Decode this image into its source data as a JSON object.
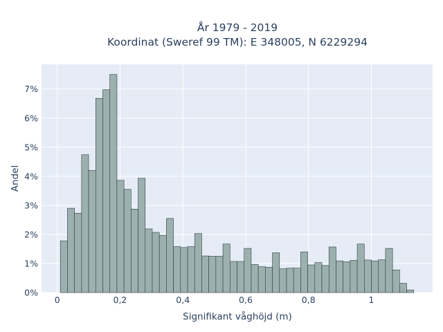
{
  "chart_data": {
    "type": "bar",
    "title_line1": "År 1979 - 2019",
    "title_line2": "Koordinat (Sweref 99 TM): E 348005, N 6229294",
    "xlabel": "Signifikant våghöjd (m)",
    "ylabel": "Andel",
    "x_ticks": [
      {
        "value": 0,
        "label": "0"
      },
      {
        "value": 0.2,
        "label": "0,2"
      },
      {
        "value": 0.4,
        "label": "0,4"
      },
      {
        "value": 0.6,
        "label": "0,6"
      },
      {
        "value": 0.8,
        "label": "0,8"
      },
      {
        "value": 1,
        "label": "1"
      }
    ],
    "y_ticks": [
      {
        "value": 0,
        "label": "0%"
      },
      {
        "value": 1,
        "label": "1%"
      },
      {
        "value": 2,
        "label": "2%"
      },
      {
        "value": 3,
        "label": "3%"
      },
      {
        "value": 4,
        "label": "4%"
      },
      {
        "value": 5,
        "label": "5%"
      },
      {
        "value": 6,
        "label": "6%"
      },
      {
        "value": 7,
        "label": "7%"
      }
    ],
    "xlim": [
      -0.05,
      1.195
    ],
    "ylim": [
      0,
      7.85
    ],
    "bin_start": 0.01,
    "bin_width": 0.0225,
    "values": [
      1.78,
      2.9,
      2.73,
      4.74,
      4.2,
      6.68,
      6.98,
      7.5,
      3.86,
      3.55,
      2.87,
      3.93,
      2.19,
      2.07,
      1.97,
      2.55,
      1.58,
      1.55,
      1.58,
      2.03,
      1.26,
      1.25,
      1.25,
      1.67,
      1.07,
      1.07,
      1.52,
      0.97,
      0.89,
      0.87,
      1.37,
      0.82,
      0.84,
      0.84,
      1.4,
      0.95,
      1.03,
      0.93,
      1.57,
      1.09,
      1.06,
      1.11,
      1.67,
      1.12,
      1.09,
      1.13,
      1.52,
      0.78,
      0.32,
      0.09
    ],
    "grid": true,
    "colors": {
      "plot_background": "#e5ecf6",
      "bar_fill": "#9db0b0",
      "bar_edge": "#2f3d3d",
      "text": "#2a3f5f"
    }
  }
}
